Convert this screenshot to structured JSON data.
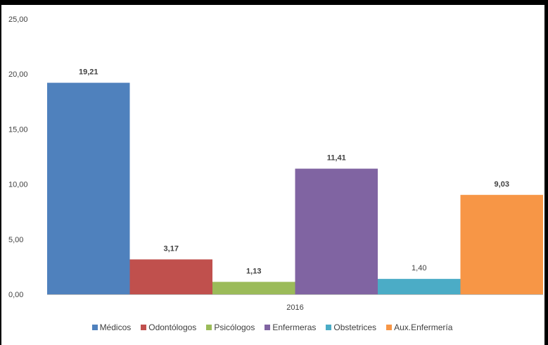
{
  "chart_data": {
    "type": "bar",
    "categories": [
      "2016"
    ],
    "series": [
      {
        "name": "Médicos",
        "values": [
          19.21
        ],
        "label": "19,21",
        "color": "#4F81BD",
        "label_bold": true
      },
      {
        "name": "Odontólogos",
        "values": [
          3.17
        ],
        "label": "3,17",
        "color": "#C0504D",
        "label_bold": true
      },
      {
        "name": "Psicólogos",
        "values": [
          1.13
        ],
        "label": "1,13",
        "color": "#9BBB59",
        "label_bold": true
      },
      {
        "name": "Enfermeras",
        "values": [
          11.41
        ],
        "label": "11,41",
        "color": "#8064A2",
        "label_bold": true
      },
      {
        "name": "Obstetrices",
        "values": [
          1.4
        ],
        "label": "1,40",
        "color": "#4BACC6",
        "label_bold": false
      },
      {
        "name": "Aux.Enfermería",
        "values": [
          9.03
        ],
        "label": "9,03",
        "color": "#F79646",
        "label_bold": true
      }
    ],
    "ylim": [
      0,
      25
    ],
    "yticks": [
      "0,00",
      "5,00",
      "10,00",
      "15,00",
      "20,00",
      "25,00"
    ],
    "ytick_values": [
      0,
      5,
      10,
      15,
      20,
      25
    ],
    "grid": false,
    "legend": "bottom",
    "title": "",
    "xlabel": "",
    "ylabel": ""
  }
}
